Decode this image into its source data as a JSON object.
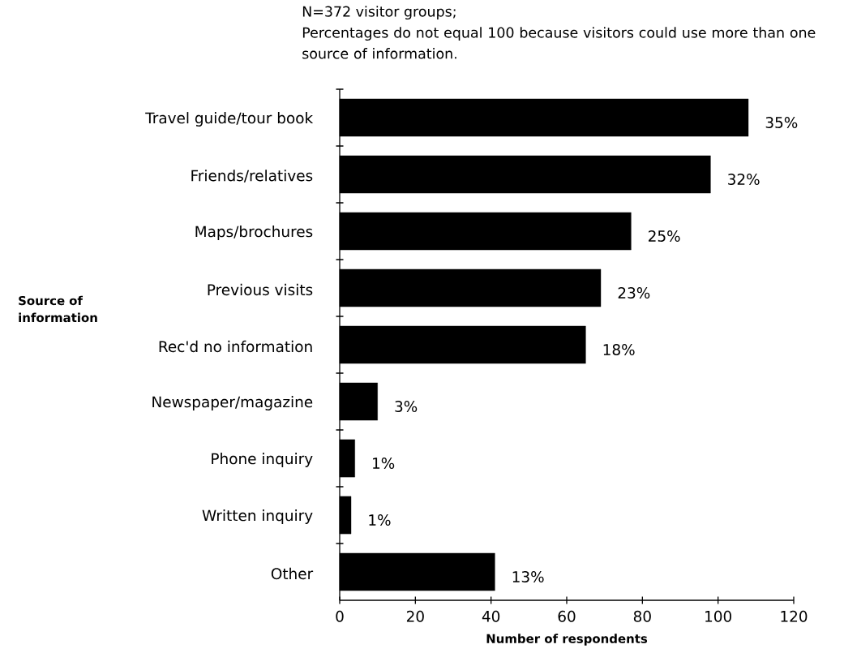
{
  "chart_data": {
    "type": "bar",
    "orientation": "horizontal",
    "title": "N=372 visitor groups;",
    "annotations": [
      "Percentages do not equal 100 because visitors could use more than one source of information.",
      {
        "text": "35%",
        "x": 108,
        "y": "Travel guide/tour book"
      },
      {
        "text": "32%",
        "x": 98,
        "y": "Friends/relatives"
      },
      {
        "text": "25%",
        "x": 77,
        "y": "Maps/brochures"
      },
      {
        "text": "23%",
        "x": 69,
        "y": "Previous visits"
      },
      {
        "text": "18%",
        "x": 65,
        "y": "Rec'd no information"
      },
      {
        "text": "3%",
        "x": 10,
        "y": "Newspaper/magazine"
      },
      {
        "text": "1%",
        "x": 4,
        "y": "Phone inquiry"
      },
      {
        "text": "1%",
        "x": 3,
        "y": "Written inquiry"
      },
      {
        "text": "13%",
        "x": 41,
        "y": "Other"
      }
    ],
    "ylabel": "Source of information",
    "xlabel": "Number of respondents",
    "categories": [
      "Travel guide/tour book",
      "Friends/relatives",
      "Maps/brochures",
      "Previous visits",
      "Rec'd no information",
      "Newspaper/magazine",
      "Phone inquiry",
      "Written inquiry",
      "Other"
    ],
    "values": [
      108,
      98,
      77,
      69,
      65,
      10,
      4,
      3,
      41
    ],
    "color": "#000000",
    "xlim": [
      0,
      120
    ],
    "xticks": [
      0,
      20,
      40,
      60,
      80,
      100,
      120
    ],
    "grid": false
  }
}
